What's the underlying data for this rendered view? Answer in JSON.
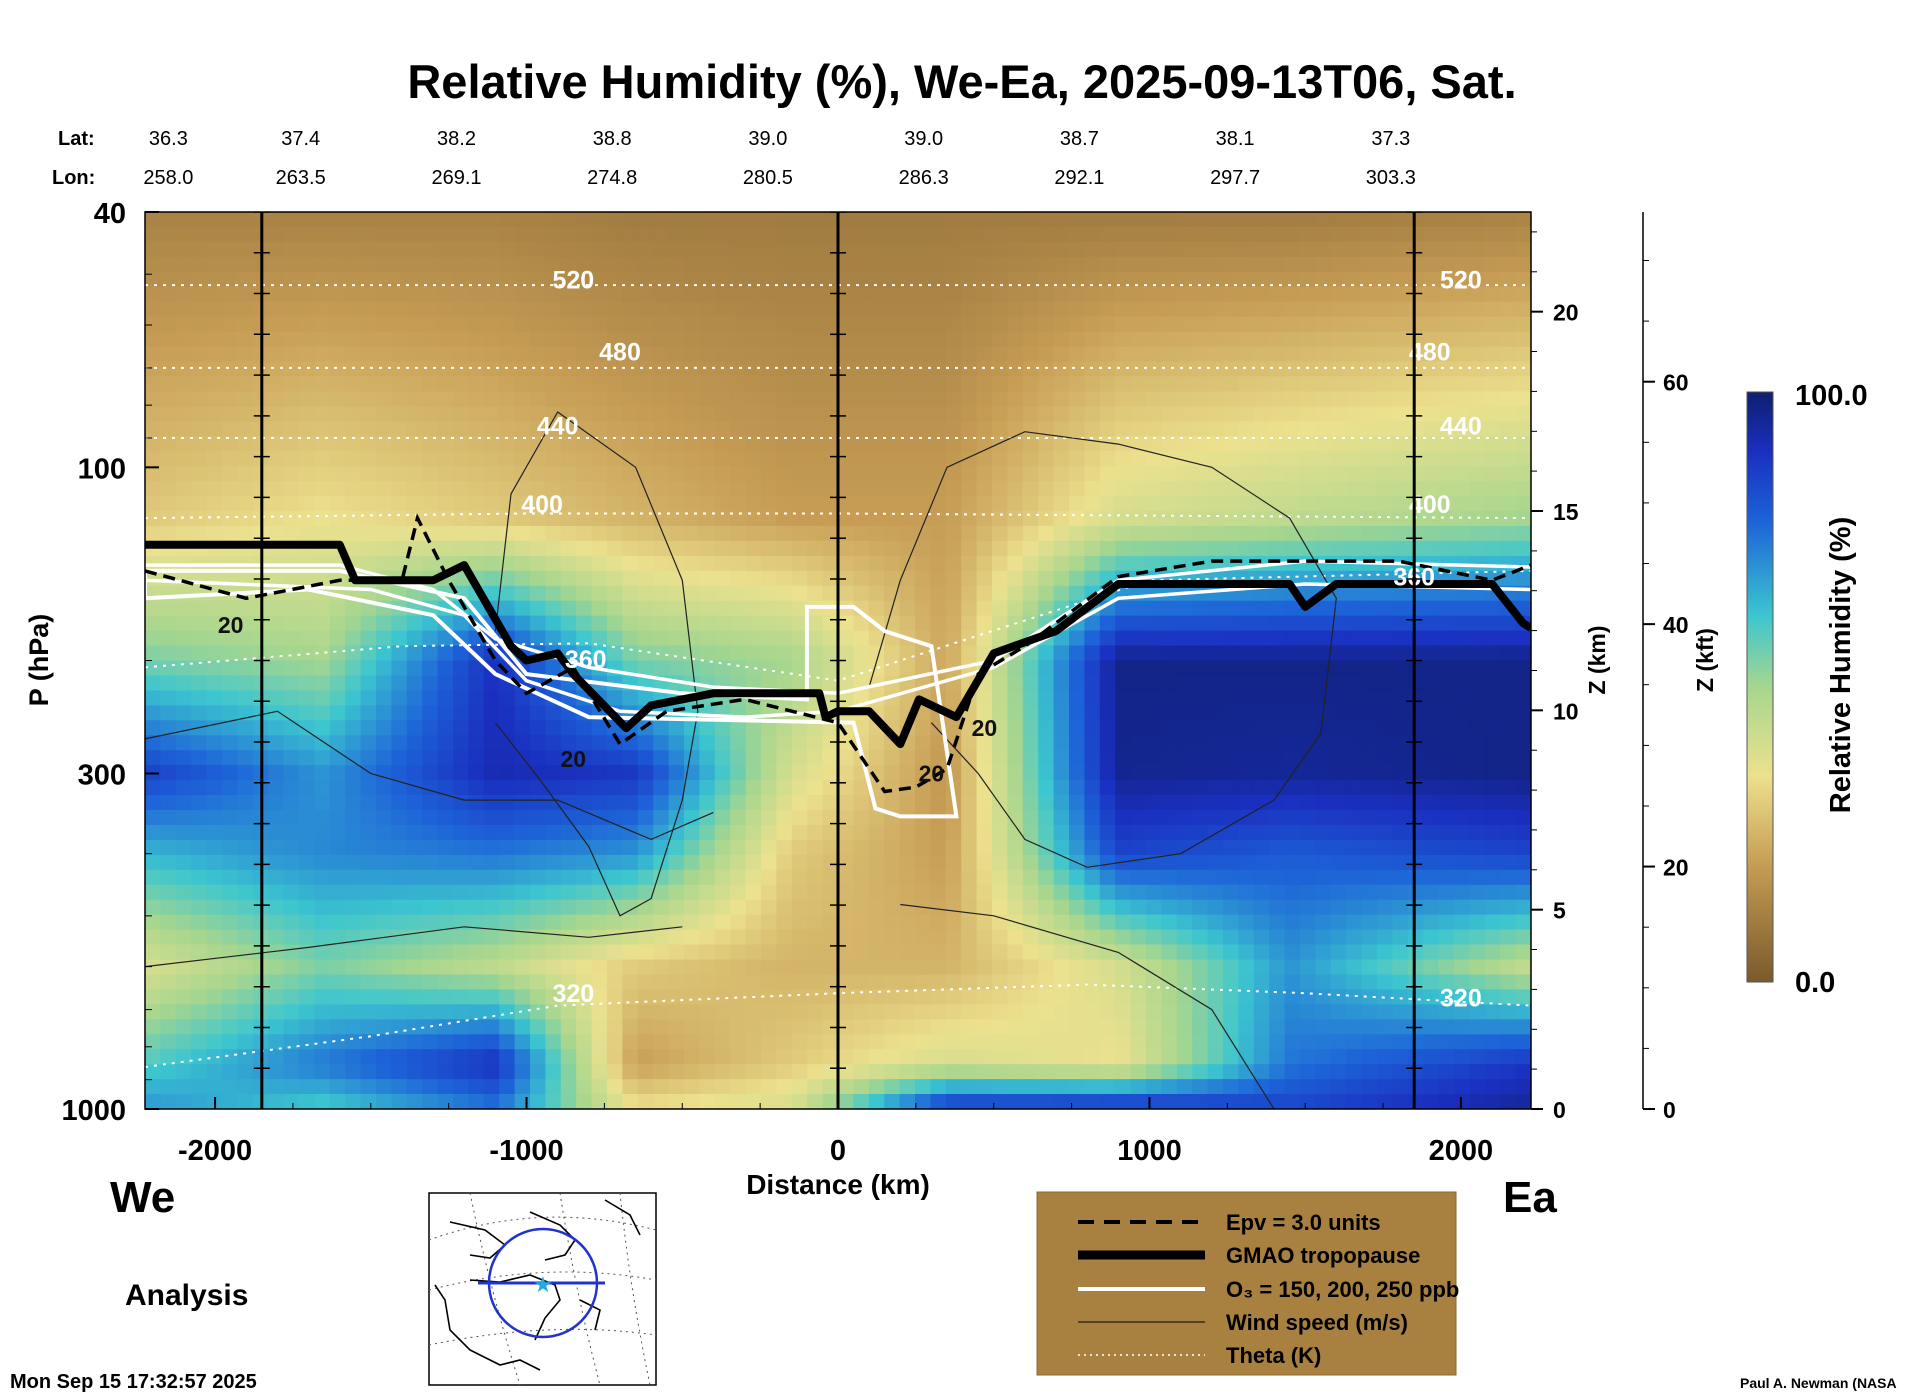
{
  "chart_data": {
    "type": "heatmap",
    "title": "Relative Humidity (%), We-Ea, 2025-09-13T06, Sat.",
    "xlabel": "Distance (km)",
    "ylabel": "P (hPa)",
    "ylabel_right_km": "Z (km)",
    "ylabel_right_kft": "Z (kft)",
    "xlim": [
      -2225,
      2225
    ],
    "ylim_hPa": [
      1000,
      40
    ],
    "x_ticks": [
      -2000,
      -1000,
      0,
      1000,
      2000
    ],
    "p_ticks": [
      40,
      100,
      300,
      1000
    ],
    "z_km_ticks": [
      0,
      5,
      10,
      15,
      20
    ],
    "z_kft_ticks": [
      0,
      20,
      40,
      60
    ],
    "lat_label": "Lat:",
    "lon_label": "Lon:",
    "lat_values": [
      "36.3",
      "37.4",
      "38.2",
      "38.8",
      "39.0",
      "39.0",
      "38.7",
      "38.1",
      "37.3"
    ],
    "lon_values": [
      "258.0",
      "263.5",
      "269.1",
      "274.8",
      "280.5",
      "286.3",
      "292.1",
      "297.7",
      "303.3"
    ],
    "lat_lon_x_km": [
      -2150,
      -1725,
      -1225,
      -725,
      -225,
      275,
      775,
      1275,
      1775
    ],
    "vertical_marker_lines_km": [
      -1850,
      0,
      1850
    ],
    "colorbar": {
      "label": "Relative Humidity (%)",
      "min_label": "0.0",
      "max_label": "100.0",
      "min": 0,
      "max": 100
    },
    "humidity_columns": [
      {
        "x": -2200,
        "profile": [
          {
            "p": 1000,
            "rh": 70
          },
          {
            "p": 850,
            "rh": 60
          },
          {
            "p": 600,
            "rh": 40
          },
          {
            "p": 400,
            "rh": 65
          },
          {
            "p": 300,
            "rh": 85
          },
          {
            "p": 200,
            "rh": 55
          },
          {
            "p": 120,
            "rh": 30
          },
          {
            "p": 40,
            "rh": 12
          }
        ]
      },
      {
        "x": -1650,
        "profile": [
          {
            "p": 1000,
            "rh": 60
          },
          {
            "p": 850,
            "rh": 75
          },
          {
            "p": 600,
            "rh": 55
          },
          {
            "p": 400,
            "rh": 72
          },
          {
            "p": 300,
            "rh": 70
          },
          {
            "p": 200,
            "rh": 50
          },
          {
            "p": 120,
            "rh": 35
          },
          {
            "p": 40,
            "rh": 12
          }
        ]
      },
      {
        "x": -1100,
        "profile": [
          {
            "p": 1000,
            "rh": 75
          },
          {
            "p": 850,
            "rh": 90
          },
          {
            "p": 600,
            "rh": 45
          },
          {
            "p": 400,
            "rh": 75
          },
          {
            "p": 300,
            "rh": 92
          },
          {
            "p": 200,
            "rh": 90
          },
          {
            "p": 120,
            "rh": 30
          },
          {
            "p": 40,
            "rh": 12
          }
        ]
      },
      {
        "x": -650,
        "profile": [
          {
            "p": 1000,
            "rh": 35
          },
          {
            "p": 850,
            "rh": 20
          },
          {
            "p": 600,
            "rh": 30
          },
          {
            "p": 400,
            "rh": 70
          },
          {
            "p": 300,
            "rh": 88
          },
          {
            "p": 200,
            "rh": 55
          },
          {
            "p": 120,
            "rh": 25
          },
          {
            "p": 40,
            "rh": 10
          }
        ]
      },
      {
        "x": -150,
        "profile": [
          {
            "p": 1000,
            "rh": 40
          },
          {
            "p": 850,
            "rh": 30
          },
          {
            "p": 600,
            "rh": 25
          },
          {
            "p": 400,
            "rh": 30
          },
          {
            "p": 300,
            "rh": 40
          },
          {
            "p": 200,
            "rh": 50
          },
          {
            "p": 120,
            "rh": 20
          },
          {
            "p": 40,
            "rh": 10
          }
        ]
      },
      {
        "x": 350,
        "profile": [
          {
            "p": 1000,
            "rh": 90
          },
          {
            "p": 850,
            "rh": 40
          },
          {
            "p": 600,
            "rh": 25
          },
          {
            "p": 400,
            "rh": 20
          },
          {
            "p": 300,
            "rh": 18
          },
          {
            "p": 200,
            "rh": 22
          },
          {
            "p": 120,
            "rh": 20
          },
          {
            "p": 40,
            "rh": 10
          }
        ]
      },
      {
        "x": 900,
        "profile": [
          {
            "p": 1000,
            "rh": 92
          },
          {
            "p": 850,
            "rh": 35
          },
          {
            "p": 600,
            "rh": 40
          },
          {
            "p": 400,
            "rh": 85
          },
          {
            "p": 300,
            "rh": 96
          },
          {
            "p": 200,
            "rh": 97
          },
          {
            "p": 120,
            "rh": 40
          },
          {
            "p": 40,
            "rh": 10
          }
        ]
      },
      {
        "x": 1450,
        "profile": [
          {
            "p": 1000,
            "rh": 85
          },
          {
            "p": 850,
            "rh": 75
          },
          {
            "p": 600,
            "rh": 70
          },
          {
            "p": 400,
            "rh": 80
          },
          {
            "p": 300,
            "rh": 95
          },
          {
            "p": 200,
            "rh": 97
          },
          {
            "p": 120,
            "rh": 45
          },
          {
            "p": 40,
            "rh": 10
          }
        ]
      },
      {
        "x": 2200,
        "profile": [
          {
            "p": 1000,
            "rh": 95
          },
          {
            "p": 850,
            "rh": 88
          },
          {
            "p": 600,
            "rh": 45
          },
          {
            "p": 400,
            "rh": 85
          },
          {
            "p": 300,
            "rh": 97
          },
          {
            "p": 200,
            "rh": 97
          },
          {
            "p": 120,
            "rh": 50
          },
          {
            "p": 40,
            "rh": 12
          }
        ]
      }
    ],
    "theta_lines": [
      {
        "label": "320",
        "points": [
          [
            -2225,
            860
          ],
          [
            -1500,
            770
          ],
          [
            -900,
            690
          ],
          [
            0,
            660
          ],
          [
            800,
            640
          ],
          [
            1500,
            660
          ],
          [
            2225,
            690
          ]
        ]
      },
      {
        "label": "360",
        "points": [
          [
            -2225,
            205
          ],
          [
            -1400,
            190
          ],
          [
            -800,
            188
          ],
          [
            0,
            215
          ],
          [
            1000,
            150
          ],
          [
            2225,
            145
          ]
        ]
      },
      {
        "label": "400",
        "points": [
          [
            -2225,
            120
          ],
          [
            -1000,
            118
          ],
          [
            0,
            118
          ],
          [
            2225,
            120
          ]
        ]
      },
      {
        "label": "440",
        "points": [
          [
            -2225,
            90
          ],
          [
            0,
            90
          ],
          [
            2225,
            90
          ]
        ]
      },
      {
        "label": "480",
        "points": [
          [
            -2225,
            70
          ],
          [
            0,
            70
          ],
          [
            2225,
            70
          ]
        ]
      },
      {
        "label": "520",
        "points": [
          [
            -2225,
            52
          ],
          [
            0,
            52
          ],
          [
            2225,
            52
          ]
        ]
      }
    ],
    "theta_label_positions": [
      [
        -850,
        660
      ],
      [
        -810,
        199
      ],
      [
        -950,
        114
      ],
      [
        -900,
        86
      ],
      [
        -700,
        66
      ],
      [
        -850,
        51
      ],
      [
        2000,
        670
      ],
      [
        1850,
        148
      ],
      [
        1900,
        114
      ],
      [
        2000,
        86
      ],
      [
        1900,
        66
      ],
      [
        2000,
        51
      ]
    ],
    "tropopause": [
      [
        -2225,
        132
      ],
      [
        -1600,
        132
      ],
      [
        -1550,
        150
      ],
      [
        -1300,
        150
      ],
      [
        -1200,
        142
      ],
      [
        -1050,
        190
      ],
      [
        -1000,
        200
      ],
      [
        -900,
        195
      ],
      [
        -850,
        210
      ],
      [
        -680,
        255
      ],
      [
        -600,
        235
      ],
      [
        -400,
        225
      ],
      [
        -60,
        225
      ],
      [
        -40,
        245
      ],
      [
        0,
        240
      ],
      [
        100,
        240
      ],
      [
        200,
        270
      ],
      [
        260,
        230
      ],
      [
        380,
        245
      ],
      [
        500,
        195
      ],
      [
        700,
        180
      ],
      [
        900,
        152
      ],
      [
        1450,
        152
      ],
      [
        1500,
        165
      ],
      [
        1600,
        152
      ],
      [
        2100,
        152
      ],
      [
        2200,
        175
      ],
      [
        2225,
        178
      ]
    ],
    "ozone_250": [
      [
        -2225,
        145
      ],
      [
        -1600,
        145
      ],
      [
        -1200,
        160
      ],
      [
        -1000,
        210
      ],
      [
        -500,
        225
      ],
      [
        -100,
        230
      ],
      [
        -100,
        165
      ],
      [
        50,
        165
      ],
      [
        150,
        180
      ],
      [
        300,
        190
      ],
      [
        380,
        350
      ],
      [
        200,
        350
      ],
      [
        120,
        340
      ],
      [
        50,
        250
      ],
      [
        -300,
        248
      ],
      [
        -800,
        245
      ],
      [
        -1100,
        210
      ],
      [
        -1300,
        170
      ],
      [
        -1700,
        155
      ],
      [
        -2225,
        160
      ]
    ],
    "ozone_lines": [
      [
        [
          -2225,
          142
        ],
        [
          -1600,
          142
        ],
        [
          -1300,
          155
        ],
        [
          -1100,
          185
        ],
        [
          -800,
          205
        ],
        [
          -400,
          220
        ],
        [
          0,
          225
        ],
        [
          500,
          200
        ],
        [
          900,
          150
        ],
        [
          1500,
          140
        ],
        [
          2225,
          143
        ]
      ],
      [
        [
          -2225,
          150
        ],
        [
          -1500,
          155
        ],
        [
          -1200,
          170
        ],
        [
          -1000,
          215
        ],
        [
          -700,
          240
        ],
        [
          -300,
          245
        ],
        [
          0,
          240
        ],
        [
          500,
          205
        ],
        [
          900,
          160
        ],
        [
          1500,
          152
        ],
        [
          2225,
          155
        ]
      ]
    ],
    "epv_line": [
      [
        -2225,
        145
      ],
      [
        -1900,
        160
      ],
      [
        -1600,
        150
      ],
      [
        -1400,
        150
      ],
      [
        -1350,
        120
      ],
      [
        -1250,
        150
      ],
      [
        -1100,
        200
      ],
      [
        -1000,
        225
      ],
      [
        -850,
        205
      ],
      [
        -700,
        270
      ],
      [
        -550,
        240
      ],
      [
        -300,
        230
      ],
      [
        0,
        250
      ],
      [
        150,
        320
      ],
      [
        250,
        315
      ],
      [
        350,
        295
      ],
      [
        450,
        210
      ],
      [
        600,
        190
      ],
      [
        900,
        148
      ],
      [
        1200,
        140
      ],
      [
        1500,
        140
      ],
      [
        1800,
        140
      ],
      [
        2100,
        150
      ],
      [
        2225,
        142
      ]
    ],
    "wind_contour_labels": [
      [
        -1950,
        176
      ],
      [
        -850,
        285
      ],
      [
        300,
        300
      ],
      [
        470,
        255
      ]
    ],
    "wind_label": "20",
    "wind_contours": [
      [
        [
          -2225,
          265
        ],
        [
          -1800,
          240
        ],
        [
          -1500,
          300
        ],
        [
          -1200,
          330
        ],
        [
          -900,
          330
        ],
        [
          -600,
          380
        ],
        [
          -400,
          345
        ]
      ],
      [
        [
          -1100,
          250
        ],
        [
          -950,
          310
        ],
        [
          -800,
          390
        ],
        [
          -700,
          500
        ],
        [
          -600,
          470
        ],
        [
          -500,
          330
        ],
        [
          -450,
          240
        ],
        [
          -500,
          150
        ],
        [
          -650,
          100
        ],
        [
          -900,
          82
        ],
        [
          -1050,
          110
        ],
        [
          -1100,
          180
        ]
      ],
      [
        [
          100,
          220
        ],
        [
          200,
          150
        ],
        [
          350,
          100
        ],
        [
          600,
          88
        ],
        [
          900,
          92
        ],
        [
          1200,
          100
        ],
        [
          1450,
          120
        ],
        [
          1600,
          160
        ],
        [
          1550,
          260
        ],
        [
          1400,
          330
        ],
        [
          1100,
          400
        ],
        [
          800,
          420
        ],
        [
          600,
          380
        ],
        [
          450,
          300
        ],
        [
          300,
          250
        ]
      ],
      [
        [
          -2225,
          600
        ],
        [
          -1700,
          560
        ],
        [
          -1200,
          520
        ],
        [
          -800,
          540
        ],
        [
          -500,
          520
        ]
      ],
      [
        [
          1400,
          1000
        ],
        [
          1200,
          700
        ],
        [
          900,
          570
        ],
        [
          500,
          500
        ],
        [
          200,
          480
        ]
      ]
    ],
    "legend": [
      {
        "style": "dashed",
        "label": "Epv = 3.0 units"
      },
      {
        "style": "thick",
        "label": "GMAO tropopause"
      },
      {
        "style": "white",
        "label": "O₃ = 150, 200, 250 ppb"
      },
      {
        "style": "thin",
        "label": "Wind speed (m/s)"
      },
      {
        "style": "dotted",
        "label": "Theta (K)"
      }
    ]
  },
  "labels": {
    "west": "We",
    "east": "Ea",
    "analysis": "Analysis",
    "timestamp": "Mon Sep 15 17:32:57 2025",
    "credit": "Paul A. Newman (NASA"
  },
  "colors": {
    "dry": "#7a5a2c",
    "tan": "#d9b46a",
    "yellow": "#ece18e",
    "green": "#a6d68e",
    "cyan": "#3cc6cf",
    "blue": "#1d63d8",
    "dark_blue": "#0f1f8f",
    "legend_bg": "#a88040"
  }
}
